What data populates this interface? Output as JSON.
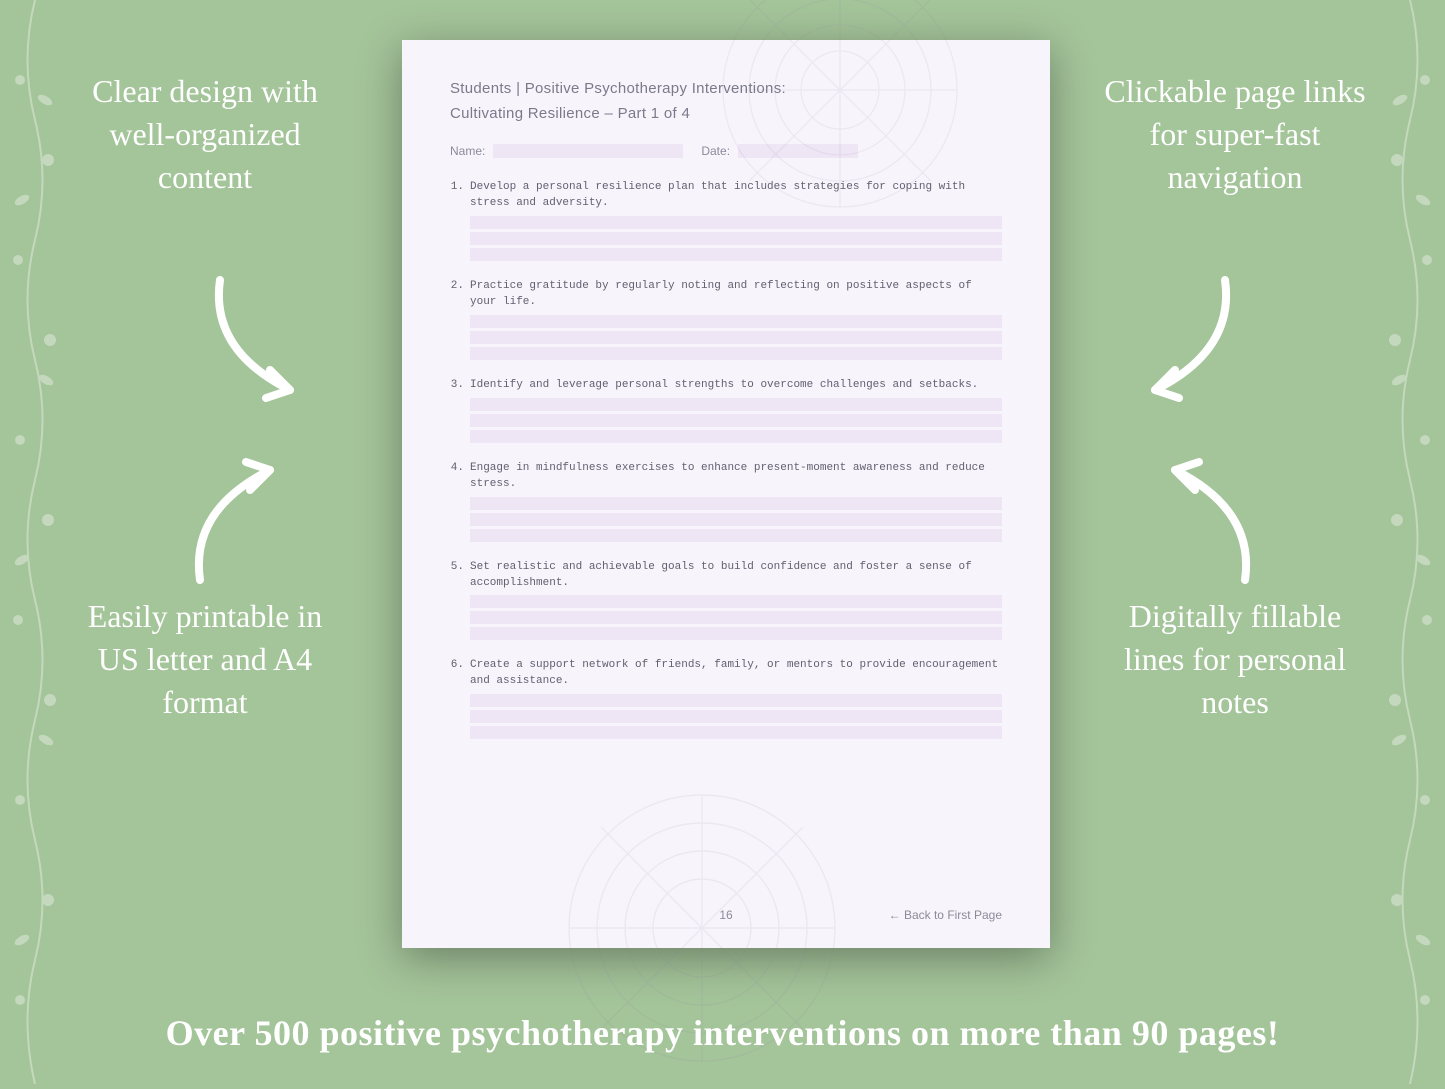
{
  "background_color": "#a4c49a",
  "callouts": {
    "top_left": "Clear design with well-organized content",
    "top_right": "Clickable page links for super-fast navigation",
    "bottom_left": "Easily printable in US letter and A4 format",
    "bottom_right": "Digitally fillable lines for personal notes"
  },
  "banner": "Over 500 positive psychotherapy interventions on more than 90 pages!",
  "colors": {
    "text_white": "#ffffff",
    "page_bg": "#f8f4fb",
    "fill_line": "#eee5f5",
    "page_text": "#6a6a7a",
    "mono_text": "#606070"
  },
  "typography": {
    "callout_fontsize": 32,
    "banner_fontsize": 36,
    "page_header_fontsize": 15,
    "item_fontsize": 11,
    "item_font": "Courier New"
  },
  "page": {
    "header": "Students | Positive Psychotherapy Interventions:",
    "subtitle": "Cultivating Resilience – Part 1 of 4",
    "name_label": "Name:",
    "date_label": "Date:",
    "page_number": "16",
    "back_link": "← Back to First Page",
    "items": [
      {
        "num": "1.",
        "text": "Develop a personal resilience plan that includes strategies for coping with stress and adversity."
      },
      {
        "num": "2.",
        "text": "Practice gratitude by regularly noting and reflecting on positive aspects of your life."
      },
      {
        "num": "3.",
        "text": "Identify and leverage personal strengths to overcome challenges and setbacks."
      },
      {
        "num": "4.",
        "text": "Engage in mindfulness exercises to enhance present-moment awareness and reduce stress."
      },
      {
        "num": "5.",
        "text": "Set realistic and achievable goals to build confidence and foster a sense of accomplishment."
      },
      {
        "num": "6.",
        "text": "Create a support network of friends, family, or mentors to provide encouragement and assistance."
      }
    ],
    "lines_per_item": 3
  }
}
